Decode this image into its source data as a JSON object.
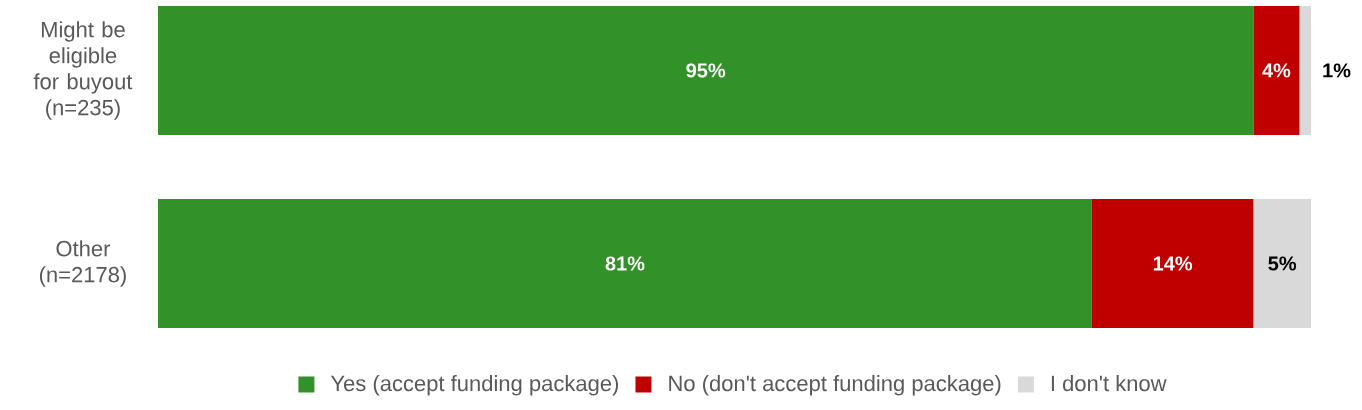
{
  "chart_data": {
    "type": "bar",
    "orientation": "horizontal",
    "stacked": true,
    "legend": "bottom",
    "categories": [
      "Might be eligible for buyout (n=235)",
      "Other (n=2178)"
    ],
    "series": [
      {
        "name": "Yes (accept funding package)",
        "color": "#339129",
        "values": [
          95,
          81
        ],
        "value_labels": [
          "95%",
          "81%"
        ]
      },
      {
        "name": "No (don't accept funding package)",
        "color": "#c00000",
        "values": [
          4,
          14
        ],
        "value_labels": [
          "4%",
          "14%"
        ]
      },
      {
        "name": "I don't know",
        "color": "#d9d9d9",
        "values": [
          1,
          5
        ],
        "value_labels": [
          "1%",
          "5%"
        ]
      }
    ]
  }
}
